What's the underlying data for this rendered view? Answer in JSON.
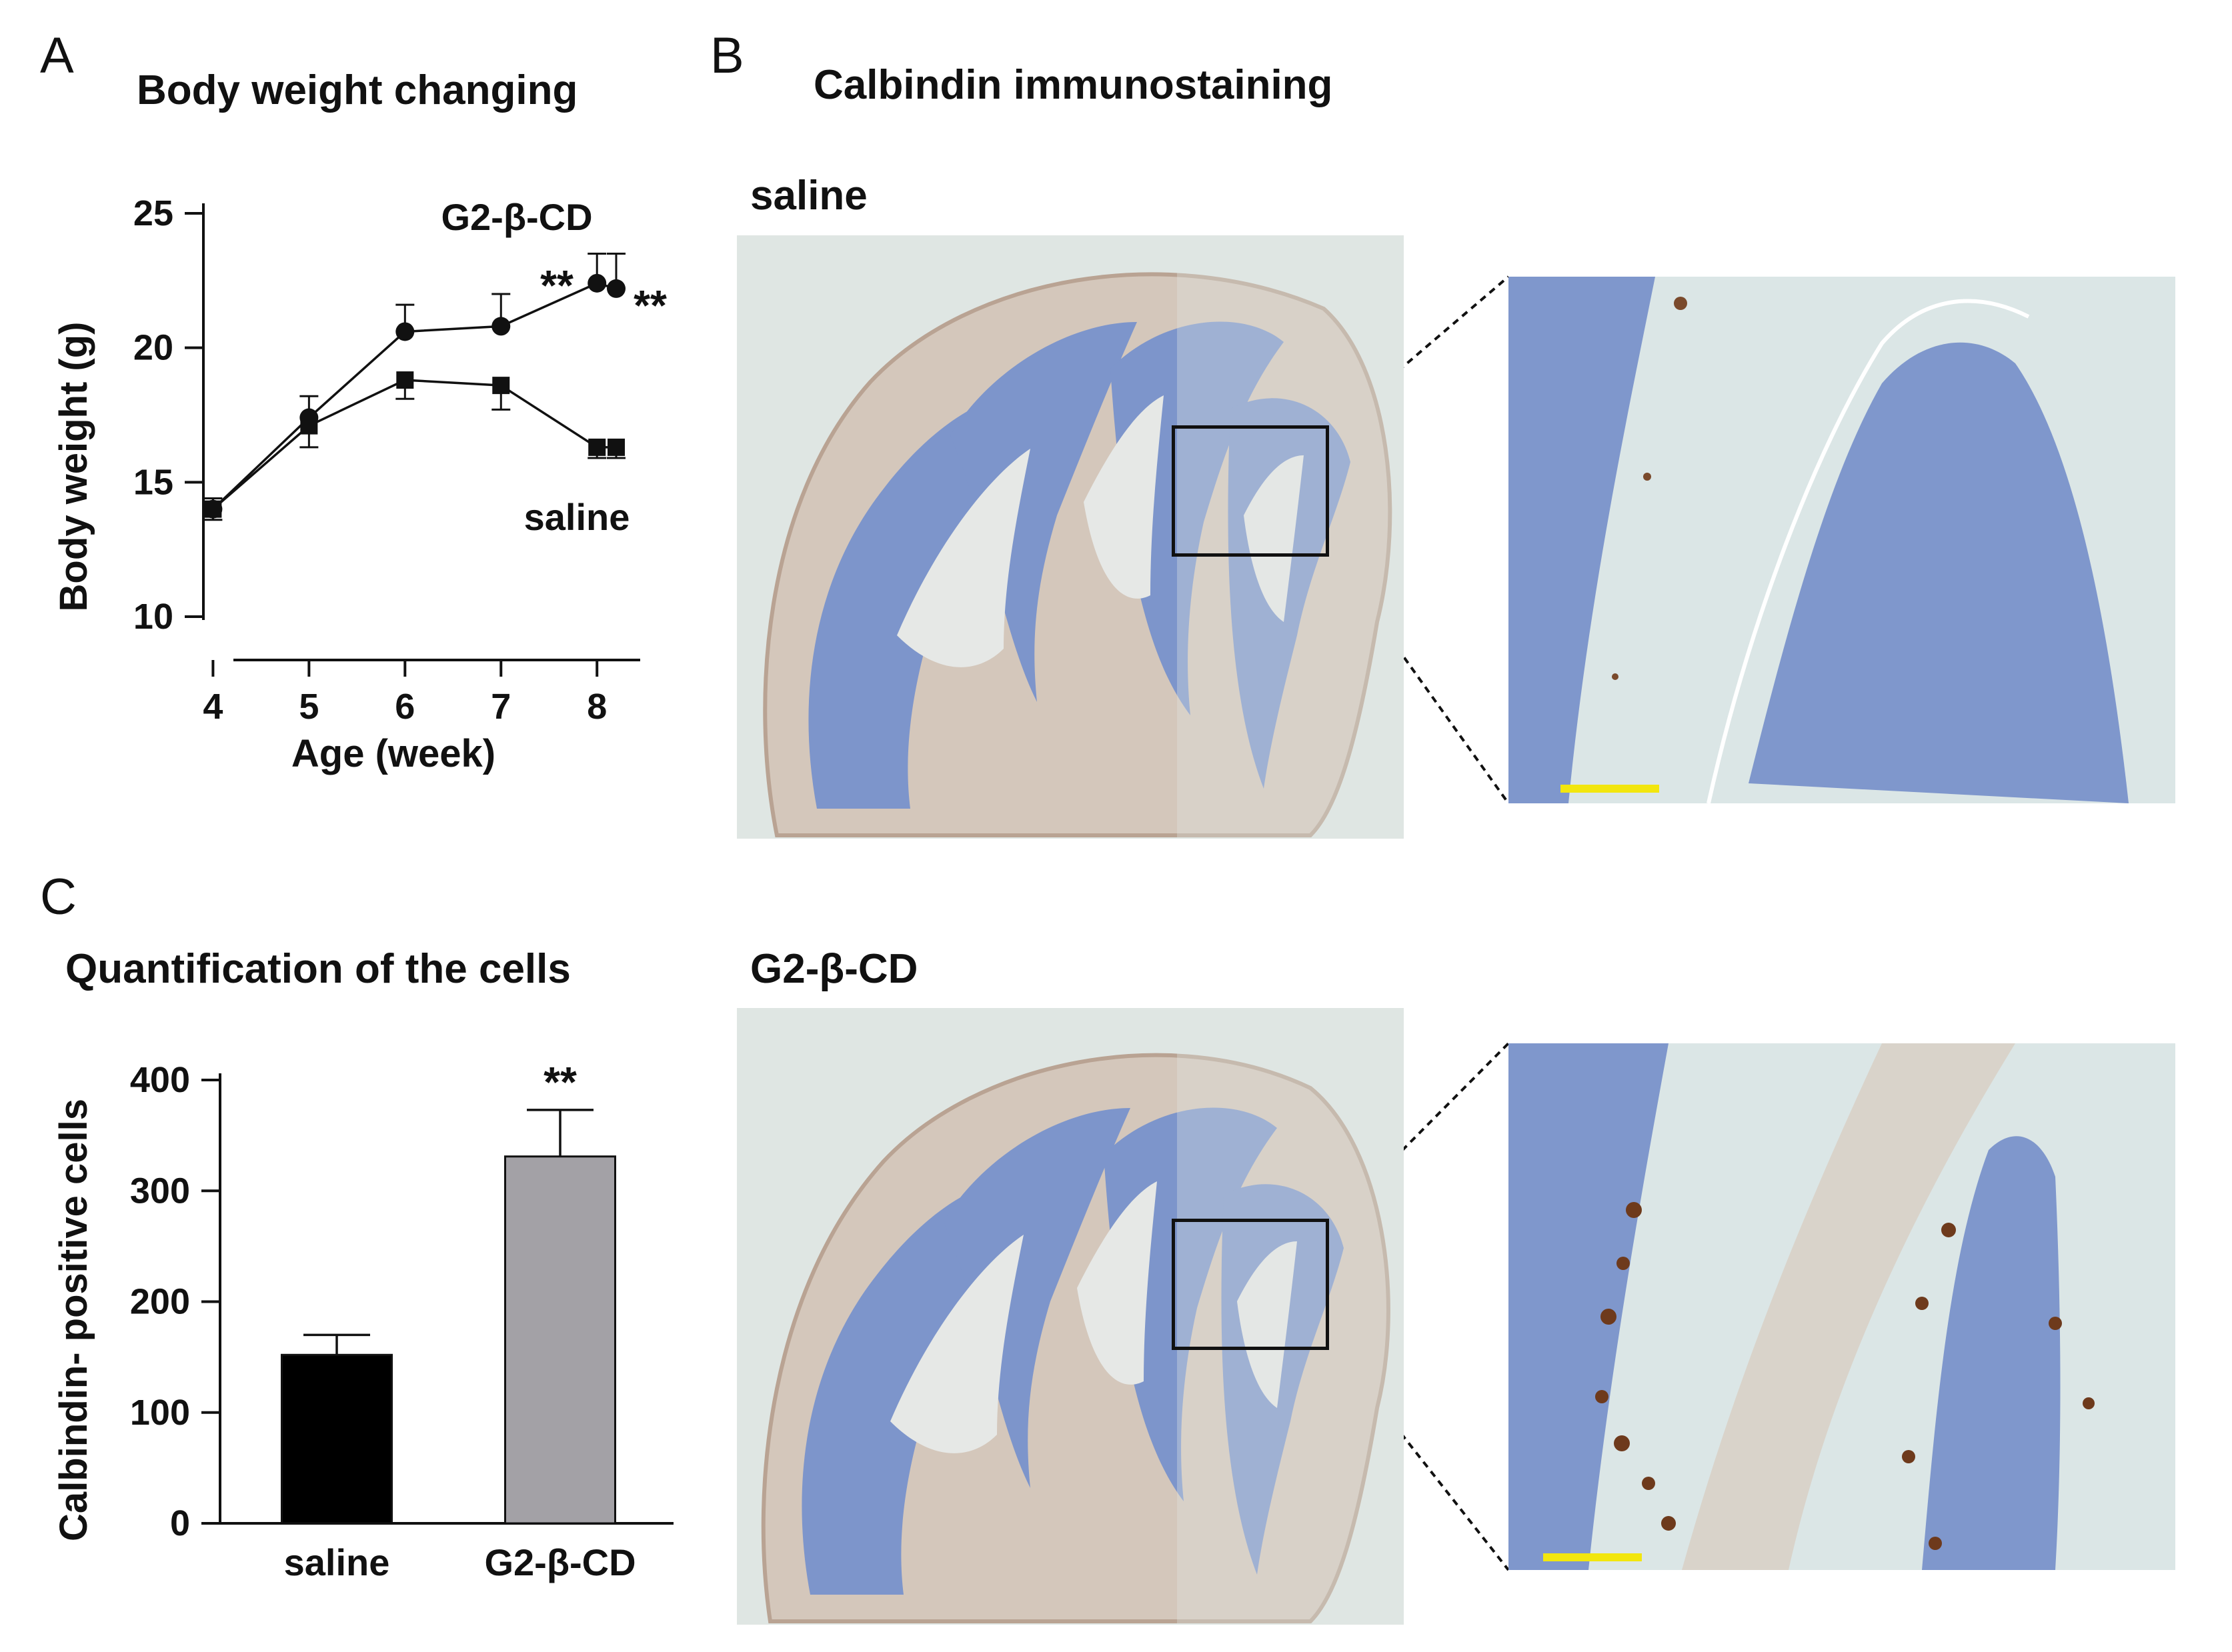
{
  "panels": {
    "a": {
      "letter": "A",
      "title": "Body weight changing",
      "chart_data": {
        "type": "line",
        "xlabel": "Age (week)",
        "ylabel": "Body weight (g)",
        "x_ticks": [
          "4",
          "5",
          "6",
          "7",
          "8"
        ],
        "y_ticks": [
          "10",
          "15",
          "20",
          "25"
        ],
        "ylim": [
          10,
          25
        ],
        "xlim": [
          3.9,
          8.45
        ],
        "series": [
          {
            "name": "G2-β-CD",
            "x": [
              4,
              5,
              6,
              7,
              8,
              8.2
            ],
            "y": [
              14.0,
              17.4,
              20.6,
              20.8,
              22.4,
              22.2
            ],
            "err": [
              0.4,
              0.8,
              1.0,
              1.2,
              1.1,
              1.3
            ],
            "marker": "circle"
          },
          {
            "name": "saline",
            "x": [
              4,
              5,
              6,
              7,
              8,
              8.2
            ],
            "y": [
              14.0,
              17.1,
              18.8,
              18.6,
              16.3,
              16.3
            ],
            "err": [
              0.4,
              0.8,
              0.7,
              0.9,
              0.4,
              0.4
            ],
            "marker": "square"
          }
        ],
        "annotations": [
          "**",
          "**"
        ]
      }
    },
    "b": {
      "letter": "B",
      "title": "Calbindin immunostaining",
      "saline_label": "saline",
      "cd_label": "G2-β-CD"
    },
    "c": {
      "letter": "C",
      "title": "Quantification of the cells",
      "chart_data": {
        "type": "bar",
        "categories": [
          "saline",
          "G2-β-CD"
        ],
        "values": [
          152,
          331
        ],
        "errors": [
          18,
          42
        ],
        "ylabel": "Calbindin- positive cells",
        "y_ticks": [
          "0",
          "100",
          "200",
          "300",
          "400"
        ],
        "ylim": [
          0,
          400
        ],
        "annotation": "**"
      }
    }
  },
  "colors": {
    "ink": "#111111",
    "saline_bar": "#000000",
    "cd_bar": "#a3a1a6",
    "tissue_bg": "#dfe6e3",
    "molecular": "#d2c3b6",
    "granular": "#7f97cc",
    "scale_bar": "#f2e60e"
  }
}
